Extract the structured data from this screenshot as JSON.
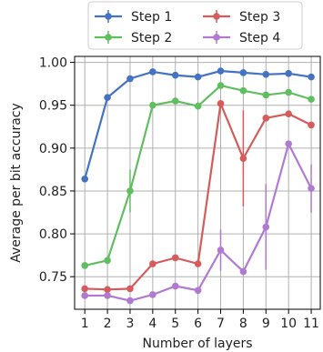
{
  "chart_data": {
    "type": "line",
    "title": "",
    "xlabel": "Number of layers",
    "ylabel": "Average per bit accuracy",
    "x": [
      1,
      2,
      3,
      4,
      5,
      6,
      7,
      8,
      9,
      10,
      11
    ],
    "x_ticks": [
      "1",
      "2",
      "3",
      "4",
      "5",
      "6",
      "7",
      "8",
      "9",
      "10",
      "11"
    ],
    "y_ticks": [
      "0.75",
      "0.80",
      "0.85",
      "0.90",
      "0.95",
      "1.00"
    ],
    "xlim": [
      0.55,
      11.4
    ],
    "ylim": [
      0.712,
      1.007
    ],
    "grid": true,
    "legend_placement": "top, outside plot, two columns",
    "series": [
      {
        "name": "Step 1",
        "color": "#4472c4",
        "values": [
          0.864,
          0.959,
          0.981,
          0.989,
          0.985,
          0.983,
          0.99,
          0.988,
          0.986,
          0.987,
          0.983
        ],
        "errors": [
          0.0,
          0.0,
          0.0,
          0.0,
          0.0,
          0.0,
          0.0,
          0.0,
          0.0,
          0.0,
          0.0
        ]
      },
      {
        "name": "Step 2",
        "color": "#5fbf5f",
        "values": [
          0.763,
          0.769,
          0.85,
          0.95,
          0.955,
          0.949,
          0.973,
          0.967,
          0.962,
          0.965,
          0.957
        ],
        "errors": [
          0.0,
          0.0,
          0.025,
          0.0,
          0.0,
          0.0,
          0.0,
          0.0,
          0.0,
          0.0,
          0.0
        ]
      },
      {
        "name": "Step 3",
        "color": "#d65c5c",
        "values": [
          0.736,
          0.735,
          0.736,
          0.765,
          0.772,
          0.765,
          0.952,
          0.888,
          0.935,
          0.94,
          0.927
        ],
        "errors": [
          0.0,
          0.0,
          0.0,
          0.0,
          0.0,
          0.0,
          0.0,
          0.056,
          0.0,
          0.0,
          0.0
        ]
      },
      {
        "name": "Step 4",
        "color": "#b07ad3",
        "values": [
          0.728,
          0.728,
          0.722,
          0.729,
          0.739,
          0.734,
          0.781,
          0.756,
          0.808,
          0.905,
          0.853
        ],
        "errors": [
          0.0,
          0.0,
          0.0,
          0.0,
          0.0,
          0.0,
          0.024,
          0.0,
          0.05,
          0.0,
          0.028
        ]
      }
    ]
  }
}
